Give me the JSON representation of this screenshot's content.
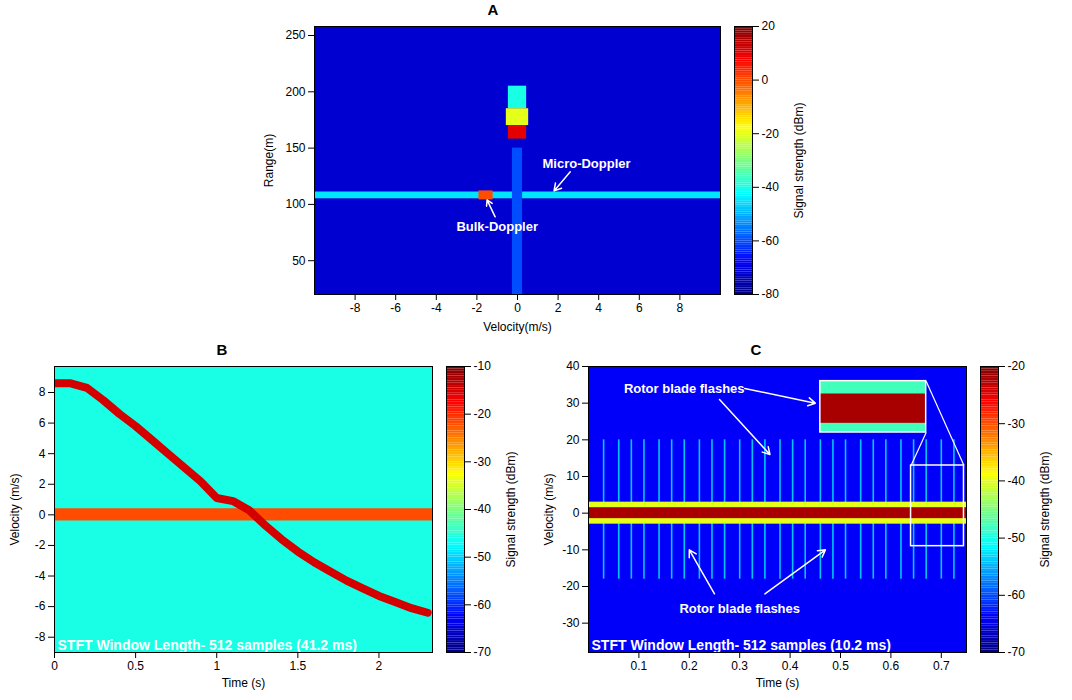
{
  "chart_data": [
    {
      "type": "heatmap",
      "title": "A",
      "xlabel": "Velocity(m/s)",
      "ylabel": "Range(m)",
      "xlim": [
        -10,
        10
      ],
      "xticks": [
        -8,
        -6,
        -4,
        -2,
        0,
        2,
        4,
        6,
        8
      ],
      "ylim": [
        20,
        258
      ],
      "yticks": [
        50,
        100,
        150,
        200,
        250
      ],
      "colorbar": {
        "label": "Signal strength (dBm)",
        "range": [
          -80,
          20
        ],
        "ticks": [
          -80,
          -60,
          -40,
          -20,
          0,
          20
        ]
      },
      "background": -72,
      "bands": [
        {
          "x0": -10,
          "x1": 10,
          "y0": 105,
          "y1": 111,
          "value": -45
        },
        {
          "x0": -0.25,
          "x1": 0.25,
          "y0": 20,
          "y1": 150,
          "value": -60
        },
        {
          "x0": -0.45,
          "x1": 0.45,
          "y0": 185,
          "y1": 205,
          "value": -40
        },
        {
          "x0": -0.55,
          "x1": 0.55,
          "y0": 170,
          "y1": 185,
          "value": -20
        },
        {
          "x0": -0.45,
          "x1": 0.45,
          "y0": 158,
          "y1": 170,
          "value": 10
        },
        {
          "x0": -1.9,
          "x1": -1.2,
          "y0": 104,
          "y1": 112,
          "value": 0
        }
      ],
      "annotations": [
        {
          "text": "Micro-Doppler",
          "x": 3.4,
          "y": 136,
          "arrows": [
            [
              2.6,
              129,
              1.8,
              112
            ]
          ]
        },
        {
          "text": "Bulk-Doppler",
          "x": -1.0,
          "y": 80,
          "arrows": [
            [
              -1.1,
              89,
              -1.5,
              104
            ]
          ]
        }
      ]
    },
    {
      "type": "heatmap",
      "title": "B",
      "xlabel": "Time (s)",
      "ylabel": "Velocity (m/s)",
      "xlim": [
        0,
        2.33
      ],
      "xticks": [
        0,
        0.5,
        1,
        1.5,
        2
      ],
      "ylim": [
        -9,
        9.7
      ],
      "yticks": [
        -8,
        -6,
        -4,
        -2,
        0,
        2,
        4,
        6,
        8
      ],
      "colorbar": {
        "label": "Signal strength (dBm)",
        "range": [
          -70,
          -10
        ],
        "ticks": [
          -70,
          -60,
          -50,
          -40,
          -30,
          -20,
          -10
        ]
      },
      "background": -46,
      "bands": [
        {
          "x0": 0,
          "x1": 2.33,
          "y0": -0.4,
          "y1": 0.4,
          "value": -22
        }
      ],
      "tracks": [
        {
          "x": [
            0,
            0.1,
            0.2,
            0.3,
            0.4,
            0.5,
            0.6,
            0.7,
            0.8,
            0.9,
            1.0,
            1.1,
            1.2,
            1.3,
            1.4,
            1.5,
            1.6,
            1.7,
            1.8,
            1.9,
            2.0,
            2.1,
            2.2,
            2.3
          ],
          "y": [
            8.6,
            8.6,
            8.3,
            7.5,
            6.6,
            5.8,
            4.9,
            4.0,
            3.1,
            2.2,
            1.1,
            0.9,
            0.3,
            -0.7,
            -1.6,
            -2.4,
            -3.1,
            -3.7,
            -4.3,
            -4.8,
            -5.3,
            -5.7,
            -6.1,
            -6.4
          ],
          "value": -15
        }
      ],
      "inner_label": "STFT Window Length- 512 samples (41.2 ms)"
    },
    {
      "type": "heatmap",
      "title": "C",
      "xlabel": "Time (s)",
      "ylabel": "Velocity (m/s)",
      "xlim": [
        0,
        0.75
      ],
      "xticks": [
        0.1,
        0.2,
        0.3,
        0.4,
        0.5,
        0.6,
        0.7
      ],
      "ylim": [
        -38,
        40
      ],
      "yticks": [
        -30,
        -20,
        -10,
        0,
        10,
        20,
        30,
        40
      ],
      "colorbar": {
        "label": "Signal strength (dBm)",
        "range": [
          -70,
          -20
        ],
        "ticks": [
          -70,
          -60,
          -50,
          -40,
          -30,
          -20
        ]
      },
      "background": -64,
      "flashes": {
        "x": [
          0.03,
          0.06,
          0.085,
          0.11,
          0.14,
          0.165,
          0.19,
          0.22,
          0.245,
          0.27,
          0.3,
          0.325,
          0.35,
          0.38,
          0.405,
          0.43,
          0.46,
          0.485,
          0.51,
          0.54,
          0.565,
          0.59,
          0.62,
          0.645,
          0.67,
          0.7,
          0.725
        ],
        "y0": -18,
        "y1": 20,
        "value": -54
      },
      "bands": [
        {
          "x0": 0,
          "x1": 0.75,
          "y0": -3,
          "y1": 3,
          "value": -40
        },
        {
          "x0": 0,
          "x1": 0.75,
          "y0": -1.5,
          "y1": 1.5,
          "value": -22
        }
      ],
      "inset": {
        "x": [
          0.46,
          0.67
        ],
        "y": [
          22,
          36
        ],
        "background": -48,
        "band": {
          "y": [
            24.5,
            32.5
          ],
          "value": -22
        },
        "source": {
          "x": [
            0.64,
            0.745
          ],
          "y": [
            -9,
            13
          ]
        }
      },
      "annotations": [
        {
          "text": "Rotor blade flashes",
          "x": 0.19,
          "y": 34,
          "arrows": [
            [
              0.31,
              34,
              0.45,
              30
            ],
            [
              0.26,
              31,
              0.36,
              16
            ]
          ]
        },
        {
          "text": "Rotor blade flashes",
          "x": 0.3,
          "y": -26,
          "arrows": [
            [
              0.25,
              -22,
              0.2,
              -10
            ],
            [
              0.35,
              -22,
              0.47,
              -10
            ]
          ]
        }
      ],
      "inner_label": "STFT Window Length- 512 samples (10.2 ms)"
    }
  ]
}
